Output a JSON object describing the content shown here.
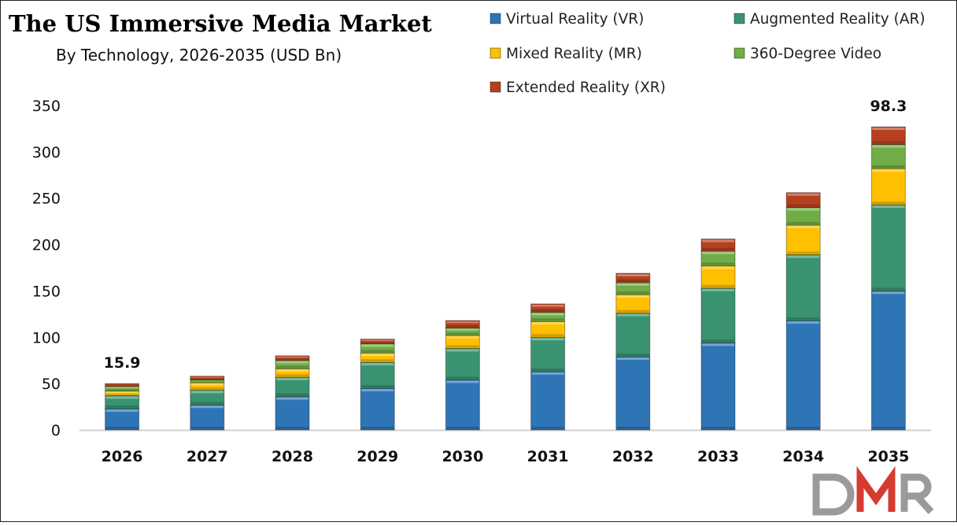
{
  "chart_data": {
    "type": "bar",
    "stacked": true,
    "title": "The US Immersive Media Market",
    "subtitle": "By Technology, 2026-2035 (USD Bn)",
    "xlabel": "",
    "ylabel": "",
    "ylim": [
      0,
      350
    ],
    "yticks": [
      0,
      50,
      100,
      150,
      200,
      250,
      300,
      350
    ],
    "grid": false,
    "legend_position": "top-right",
    "categories": [
      "2026",
      "2027",
      "2028",
      "2029",
      "2030",
      "2031",
      "2032",
      "2033",
      "2034",
      "2035"
    ],
    "series": [
      {
        "name": "Virtual Reality (VR)",
        "color": "#2e75b6",
        "values": [
          23,
          27,
          36,
          45,
          54,
          63,
          79,
          94,
          118,
          150
        ]
      },
      {
        "name": "Augmented Reality (AR)",
        "color": "#3a9370",
        "values": [
          14,
          16,
          21,
          28,
          34,
          37,
          47,
          59,
          71,
          93
        ]
      },
      {
        "name": "Mixed Reality (MR)",
        "color": "#ffc000",
        "values": [
          5,
          8,
          9,
          10,
          14,
          17,
          20,
          24,
          32,
          39
        ]
      },
      {
        "name": "360-Degree Video",
        "color": "#70ad47",
        "values": [
          5,
          3,
          9,
          10,
          8,
          10,
          13,
          16,
          19,
          26
        ]
      },
      {
        "name": "Extended Reality (XR)",
        "color": "#b5401f",
        "values": [
          3,
          4,
          5,
          5,
          8,
          9,
          10,
          13,
          16,
          19
        ]
      }
    ],
    "annotations": [
      {
        "category": "2026",
        "text": "15.9"
      },
      {
        "category": "2035",
        "text": "98.3"
      }
    ]
  },
  "logo": {
    "text": "DMR"
  }
}
